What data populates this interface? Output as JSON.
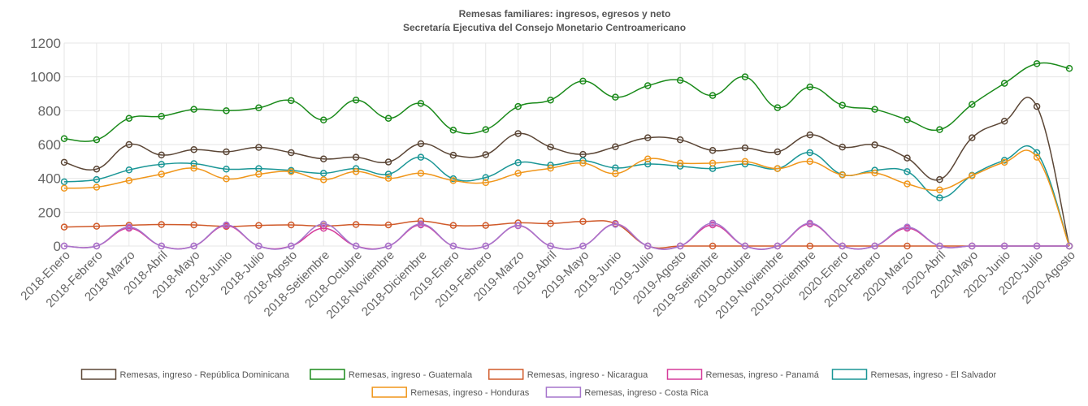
{
  "chart_data": {
    "type": "line",
    "title": "Remesas familiares: ingresos, egresos y neto",
    "subtitle": "Secretaría Ejecutiva del Consejo Monetario Centroamericano",
    "xlabel": "",
    "ylabel": "",
    "ylim": [
      0,
      1200
    ],
    "yticks": [
      0,
      200,
      400,
      600,
      800,
      1000,
      1200
    ],
    "grid": true,
    "legend_position": "bottom",
    "categories": [
      "2018-Enero",
      "2018-Febrero",
      "2018-Marzo",
      "2018-Abril",
      "2018-Mayo",
      "2018-Junio",
      "2018-Julio",
      "2018-Agosto",
      "2018-Setiembre",
      "2018-Octubre",
      "2018-Noviembre",
      "2018-Diciembre",
      "2019-Enero",
      "2019-Febrero",
      "2019-Marzo",
      "2019-Abril",
      "2019-Mayo",
      "2019-Junio",
      "2019-Julio",
      "2019-Agosto",
      "2019-Setiembre",
      "2019-Octubre",
      "2019-Noviembre",
      "2019-Diciembre",
      "2020-Enero",
      "2020-Febrero",
      "2020-Marzo",
      "2020-Abril",
      "2020-Mayo",
      "2020-Junio",
      "2020-Julio",
      "2020-Agosto"
    ],
    "series": [
      {
        "name": "Remesas, ingreso - República Dominicana",
        "color": "#5b4636",
        "values": [
          495,
          455,
          600,
          538,
          570,
          557,
          583,
          552,
          515,
          525,
          497,
          605,
          537,
          540,
          665,
          585,
          542,
          587,
          640,
          628,
          565,
          580,
          557,
          657,
          585,
          598,
          520,
          393,
          640,
          738,
          825,
          0
        ]
      },
      {
        "name": "Remesas, ingreso - Guatemala",
        "color": "#1a8a1a",
        "values": [
          635,
          628,
          755,
          767,
          808,
          800,
          817,
          860,
          745,
          863,
          755,
          843,
          685,
          688,
          825,
          863,
          975,
          880,
          948,
          980,
          890,
          1000,
          818,
          940,
          832,
          808,
          747,
          688,
          837,
          962,
          1078,
          1050
        ]
      },
      {
        "name": "Remesas, ingreso - Nicaragua",
        "color": "#d05a2a",
        "values": [
          112,
          117,
          123,
          127,
          125,
          116,
          122,
          125,
          118,
          127,
          125,
          148,
          122,
          122,
          137,
          133,
          145,
          133,
          0,
          0,
          0,
          0,
          0,
          0,
          0,
          0,
          0,
          0,
          0,
          0,
          0,
          0
        ]
      },
      {
        "name": "Remesas, ingreso - Panamá",
        "color": "#d63c9a",
        "values": [
          0,
          0,
          105,
          0,
          0,
          120,
          0,
          0,
          105,
          0,
          0,
          125,
          0,
          0,
          120,
          0,
          0,
          130,
          0,
          0,
          125,
          0,
          0,
          130,
          0,
          0,
          105,
          0,
          0,
          0,
          0,
          0
        ]
      },
      {
        "name": "Remesas, ingreso - El Salvador",
        "color": "#1a9696",
        "values": [
          380,
          393,
          450,
          483,
          487,
          455,
          458,
          447,
          430,
          458,
          425,
          525,
          398,
          405,
          493,
          478,
          505,
          462,
          485,
          472,
          458,
          485,
          458,
          552,
          422,
          448,
          440,
          285,
          418,
          507,
          552,
          0
        ]
      },
      {
        "name": "Remesas, ingreso - Honduras",
        "color": "#f0961a",
        "values": [
          342,
          348,
          387,
          425,
          460,
          397,
          425,
          440,
          392,
          440,
          400,
          430,
          387,
          375,
          430,
          460,
          490,
          428,
          515,
          490,
          490,
          500,
          458,
          500,
          420,
          432,
          367,
          332,
          415,
          495,
          525,
          0
        ]
      },
      {
        "name": "Remesas, ingreso - Costa Rica",
        "color": "#a675cc",
        "values": [
          0,
          0,
          112,
          0,
          0,
          125,
          0,
          0,
          130,
          0,
          0,
          130,
          0,
          0,
          122,
          0,
          0,
          128,
          0,
          0,
          135,
          0,
          0,
          135,
          0,
          0,
          112,
          0,
          0,
          0,
          0,
          0
        ]
      }
    ]
  }
}
